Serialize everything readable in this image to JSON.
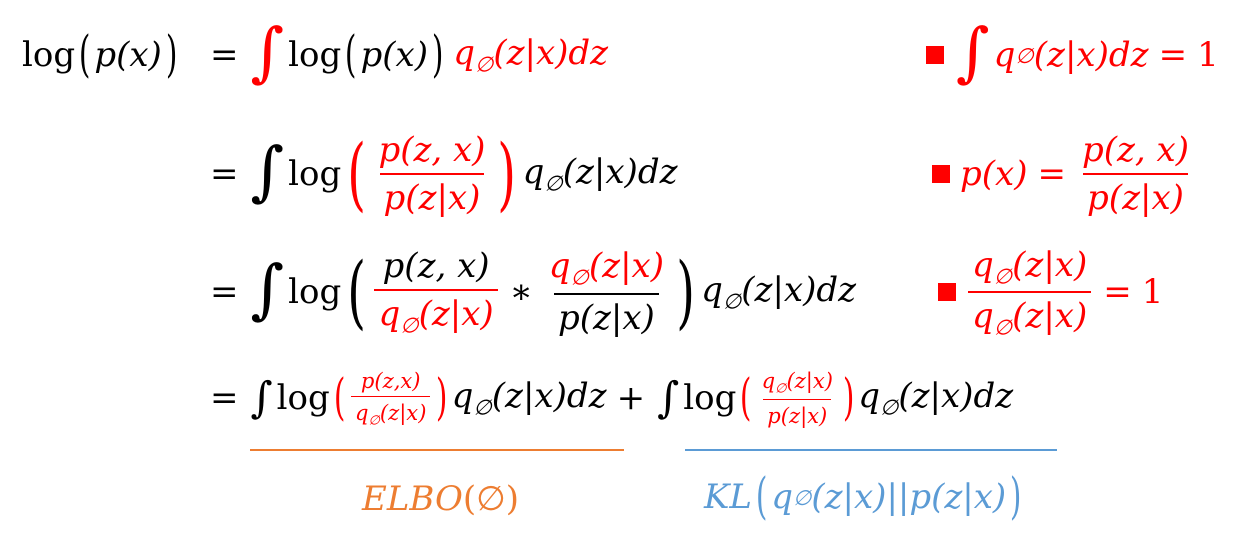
{
  "colors": {
    "red": "#ff0000",
    "orange": "#ed7d31",
    "blue": "#5b9bd5",
    "black": "#000000"
  },
  "t": {
    "log": "log",
    "eq": "=",
    "plus": "+",
    "times": "∗",
    "int": "∫",
    "one": "1",
    "lp": "(",
    "rp": ")",
    "p": "p",
    "q": "q",
    "phi": "∅",
    "x": "x",
    "z": "z",
    "comma": ",",
    "bar": "|",
    "dz": "dz",
    "px": "p(x)",
    "pzx_joint": "p(z, x)",
    "pzx_joint_small": "p(z,x)",
    "pz_given_x": "p(z|x)",
    "zx_cond": "(z|x)",
    "dz_tail": "dz",
    "elbo": "ELBO",
    "kl": "KL",
    "dbar": "||"
  }
}
